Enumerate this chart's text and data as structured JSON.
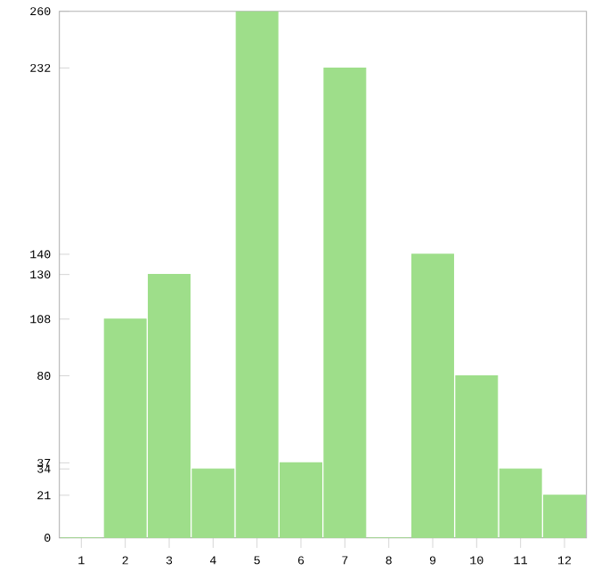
{
  "chart_data": {
    "type": "bar",
    "categories": [
      "1",
      "2",
      "3",
      "4",
      "5",
      "6",
      "7",
      "8",
      "9",
      "10",
      "11",
      "12"
    ],
    "values": [
      0,
      108,
      130,
      34,
      260,
      37,
      232,
      0,
      140,
      80,
      34,
      21
    ],
    "color": "#9ede8a",
    "ylim": [
      0,
      260
    ],
    "yticks": [
      0,
      21,
      34,
      37,
      80,
      108,
      130,
      140,
      232,
      260
    ],
    "grid": false
  }
}
